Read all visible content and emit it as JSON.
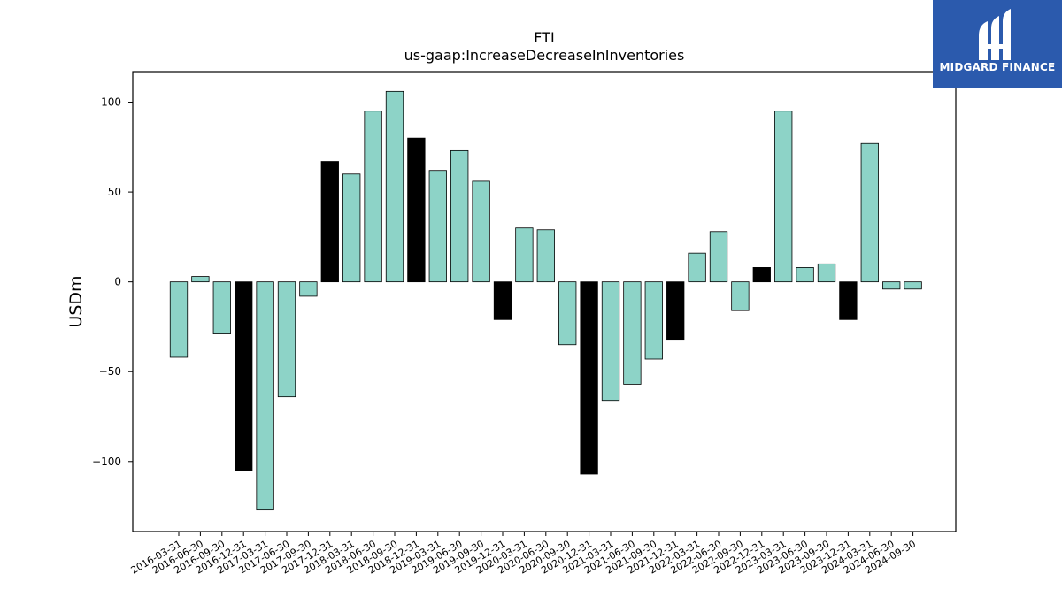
{
  "brand": {
    "name": "MIDGARD FINANCE",
    "icon": "midgard-logo-icon"
  },
  "chart_data": {
    "type": "bar",
    "title": "FTI",
    "subtitle": "us-gaap:IncreaseDecreaseInInventories",
    "xlabel": "",
    "ylabel": "USDm",
    "ylim": [
      -139,
      117
    ],
    "yticks": [
      100,
      50,
      0,
      -50,
      -100
    ],
    "ytick_labels": [
      "100",
      "50",
      "0",
      "−50",
      "−100"
    ],
    "grid": false,
    "colors": {
      "regular": "#8dd3c7",
      "q4": "#000000",
      "edge": "#000000"
    },
    "categories": [
      "2016-03-31",
      "2016-06-30",
      "2016-09-30",
      "2016-12-31",
      "2017-03-31",
      "2017-06-30",
      "2017-09-30",
      "2017-12-31",
      "2018-03-31",
      "2018-06-30",
      "2018-09-30",
      "2018-12-31",
      "2019-03-31",
      "2019-06-30",
      "2019-09-30",
      "2019-12-31",
      "2020-03-31",
      "2020-06-30",
      "2020-09-30",
      "2020-12-31",
      "2021-03-31",
      "2021-06-30",
      "2021-09-30",
      "2021-12-31",
      "2022-03-31",
      "2022-06-30",
      "2022-09-30",
      "2022-12-31",
      "2023-03-31",
      "2023-06-30",
      "2023-09-30",
      "2023-12-31",
      "2024-03-31",
      "2024-06-30",
      "2024-09-30"
    ],
    "values": [
      -42,
      3,
      -29,
      -105,
      -127,
      -64,
      -8,
      67,
      60,
      95,
      106,
      80,
      62,
      73,
      56,
      -21,
      30,
      29,
      -35,
      -107,
      -66,
      -57,
      -43,
      -32,
      16,
      28,
      -16,
      8,
      95,
      8,
      10,
      -21,
      77,
      -4,
      -4
    ]
  }
}
